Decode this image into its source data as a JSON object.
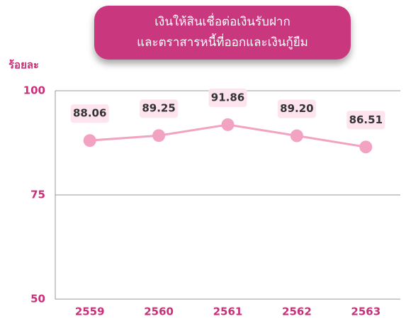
{
  "chart_data": {
    "type": "line",
    "title": [
      "เงินให้สินเชื่อต่อเงินรับฝาก",
      "และตราสารหนี้ที่ออกและเงินกู้ยืม"
    ],
    "y_label": "ร้อยละ",
    "categories": [
      "2559",
      "2560",
      "2561",
      "2562",
      "2563"
    ],
    "values": [
      88.06,
      89.25,
      91.86,
      89.2,
      86.51
    ],
    "value_labels": [
      "88.06",
      "89.25",
      "91.86",
      "89.20",
      "86.51"
    ],
    "color": "#f3a3c2",
    "ylim": [
      50,
      100
    ],
    "yticks": [
      50,
      75,
      100
    ],
    "grid": true
  }
}
